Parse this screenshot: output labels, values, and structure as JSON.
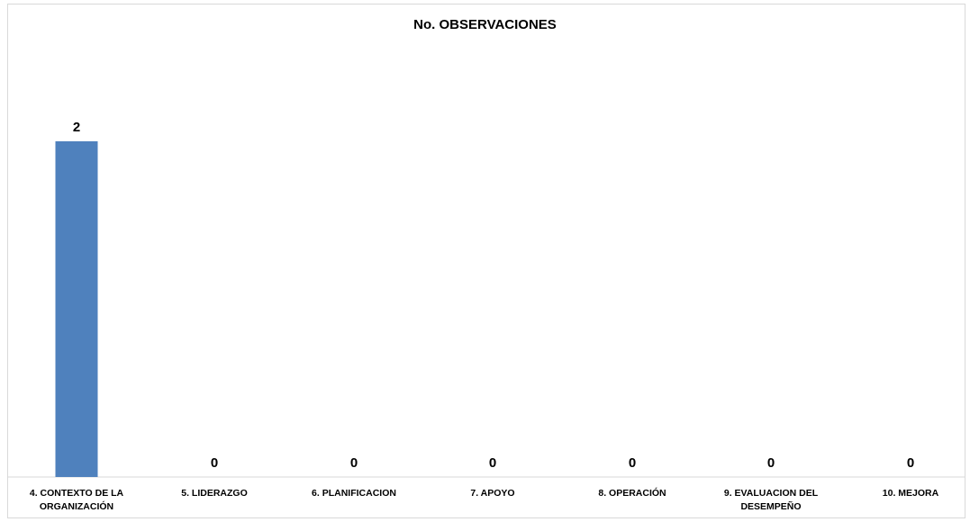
{
  "chart_data": {
    "type": "bar",
    "title": "No. OBSERVACIONES",
    "xlabel": "",
    "ylabel": "",
    "categories": [
      "4. CONTEXTO DE LA ORGANIZACIÓN",
      "5. LIDERAZGO",
      "6. PLANIFICACION",
      "7. APOYO",
      "8. OPERACIÓN",
      "9. EVALUACION DEL DESEMPEÑO",
      "10. MEJORA"
    ],
    "category_lines": [
      [
        "4. CONTEXTO DE LA",
        "ORGANIZACIÓN"
      ],
      [
        "5. LIDERAZGO"
      ],
      [
        "6. PLANIFICACION"
      ],
      [
        "7. APOYO"
      ],
      [
        "8. OPERACIÓN"
      ],
      [
        "9. EVALUACION DEL",
        "DESEMPEÑO"
      ],
      [
        "10. MEJORA"
      ]
    ],
    "values": [
      2,
      0,
      0,
      0,
      0,
      0,
      0
    ],
    "ylim": [
      0,
      2.3
    ],
    "grid": false,
    "legend": "none",
    "bar_color": "#4f81bd"
  }
}
